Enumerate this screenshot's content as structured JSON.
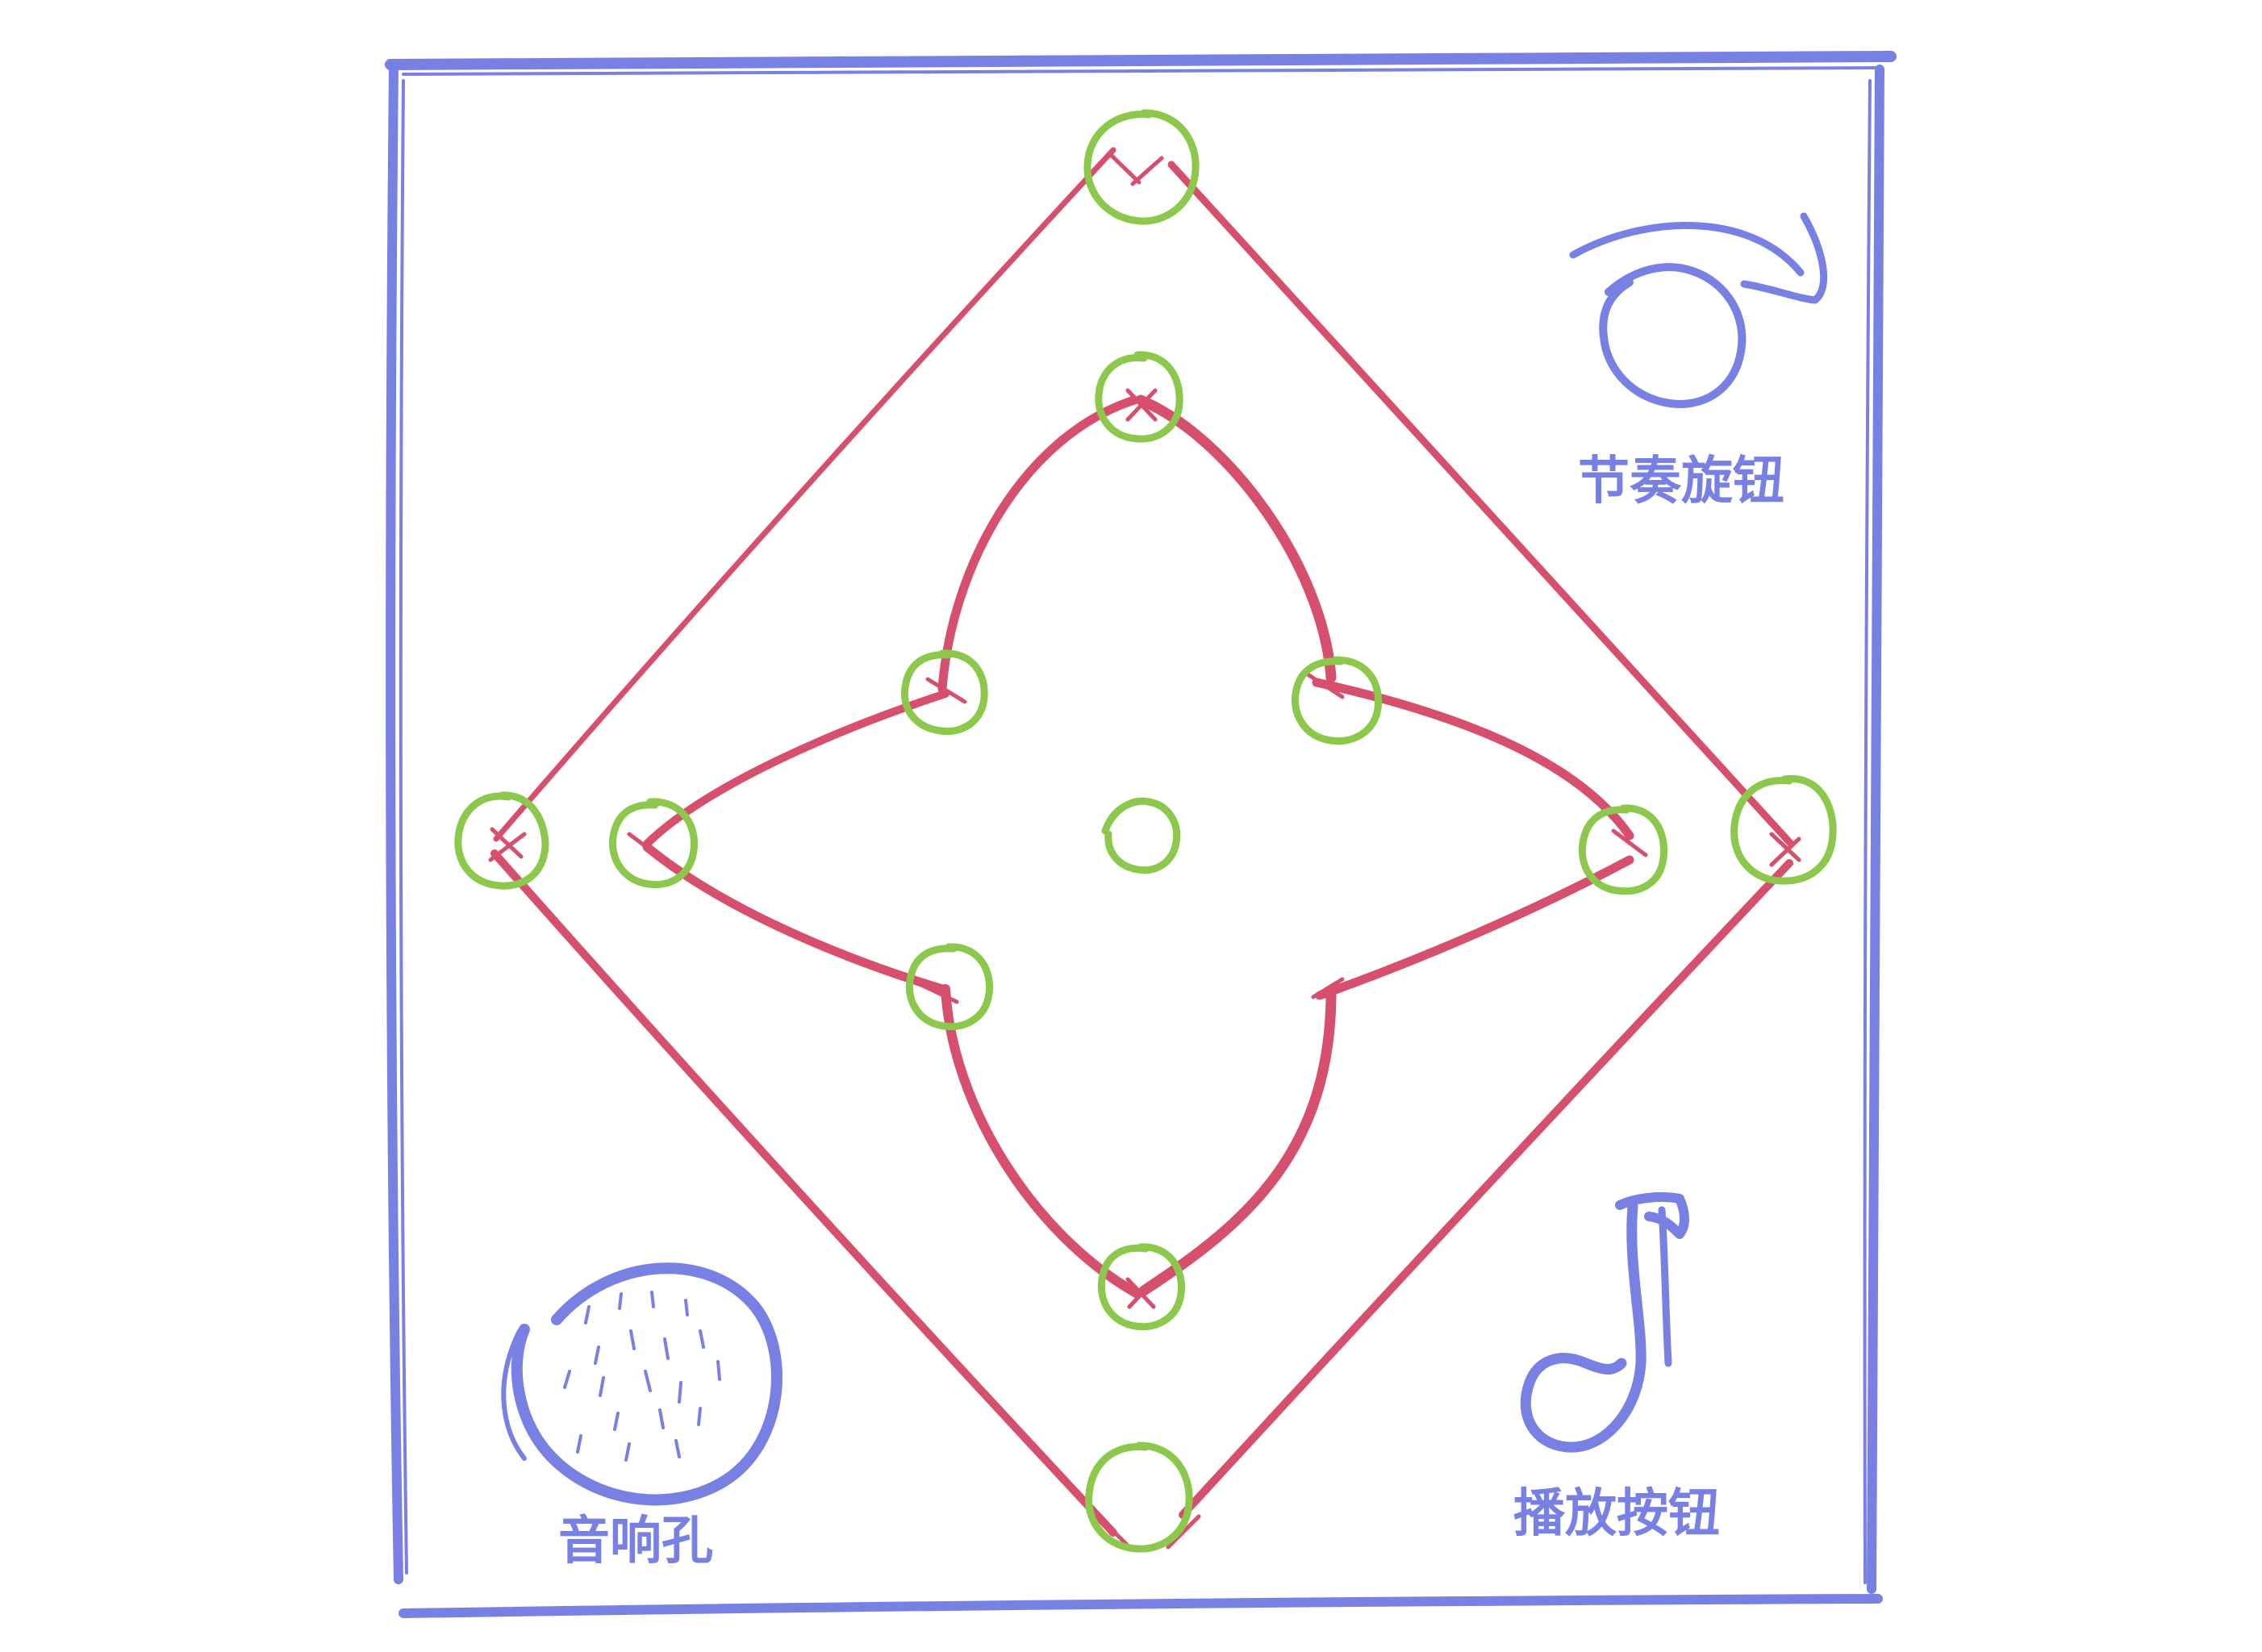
{
  "colors": {
    "frame": "#7880e4",
    "pattern": "#d64f6d",
    "node": "#8cc84b",
    "label": "#7880e4",
    "background": "#ffffff"
  },
  "labels": {
    "rhythm_knob": "节奏旋钮",
    "speaker_hole": "音响孔",
    "play_button": "播放按钮"
  },
  "icons": {
    "rhythm_knob": "knob-icon",
    "speaker_hole": "speaker-grille-icon",
    "play_button": "music-note-icon"
  }
}
